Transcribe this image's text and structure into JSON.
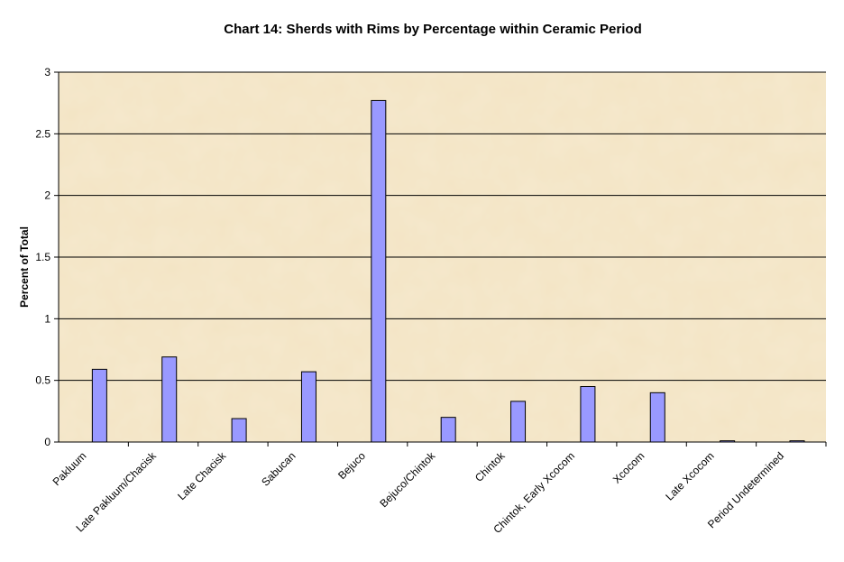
{
  "chart_data": {
    "type": "bar",
    "title": "Chart 14: Sherds with Rims by Percentage within Ceramic Period",
    "xlabel": "",
    "ylabel": "Percent of Total",
    "ylim": [
      0,
      3
    ],
    "yticks": [
      "0",
      "0.5",
      "1",
      "1.5",
      "2",
      "2.5",
      "3"
    ],
    "grid": true,
    "legend": "none",
    "categories": [
      "Pakluum",
      "Late Pakluum/Chacisk",
      "Late Chacisk",
      "Sabucan",
      "Bejuco",
      "Bejuco/Chintok",
      "Chintok",
      "Chintok, Early Xcocom",
      "Xcocom",
      "Late Xcocom",
      "Period Undetermined"
    ],
    "values": [
      0.59,
      0.69,
      0.19,
      0.57,
      2.77,
      0.2,
      0.33,
      0.45,
      0.4,
      0.01,
      0.01
    ],
    "colors": {
      "bar": "#9999ff",
      "bar_stroke": "#000000",
      "gridline": "#000000",
      "plot_bg": "#ecd9b0"
    }
  }
}
